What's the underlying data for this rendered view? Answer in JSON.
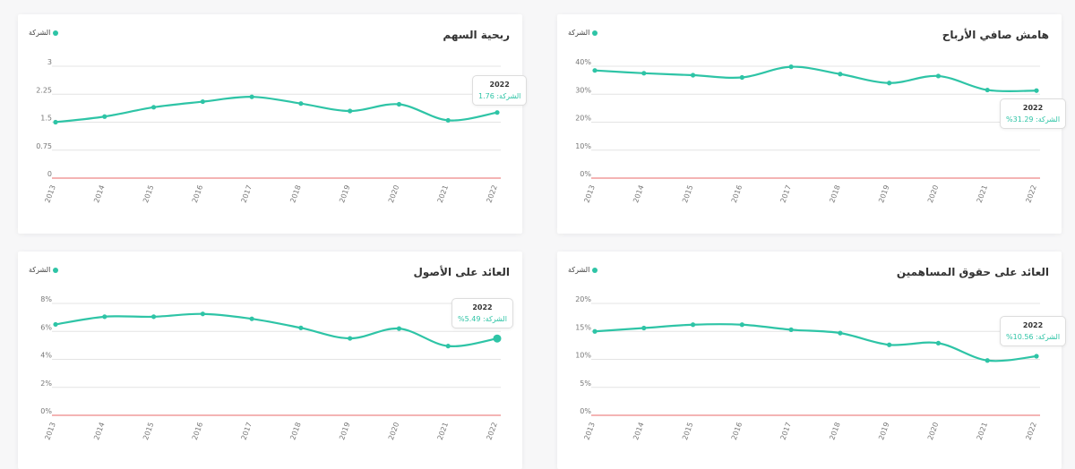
{
  "colors": {
    "accent": "#2ec4a6",
    "baseline": "#e88888",
    "grid": "#e4e4e4"
  },
  "chart_data": [
    {
      "id": "eps",
      "type": "line",
      "title": "ربحية السهم",
      "legend": "الشركة",
      "x": [
        "2013",
        "2014",
        "2015",
        "2016",
        "2017",
        "2018",
        "2019",
        "2020",
        "2021",
        "2022"
      ],
      "yticks": [
        "0",
        "0.75",
        "1.5",
        "2.25",
        "3"
      ],
      "ylim": [
        0,
        3
      ],
      "series": [
        {
          "name": "الشركة",
          "values": [
            1.5,
            1.65,
            1.9,
            2.05,
            2.18,
            2.0,
            1.8,
            1.98,
            1.55,
            1.76
          ]
        }
      ],
      "tooltip": {
        "year": "2022",
        "text": "الشركة: 1.76"
      }
    },
    {
      "id": "npm",
      "type": "line",
      "title": "هامش صافي الأرباح",
      "legend": "الشركة",
      "x": [
        "2013",
        "2014",
        "2015",
        "2016",
        "2017",
        "2018",
        "2019",
        "2020",
        "2021",
        "2022"
      ],
      "yticks": [
        "0%",
        "10%",
        "20%",
        "30%",
        "40%"
      ],
      "ylim": [
        0,
        40
      ],
      "series": [
        {
          "name": "الشركة",
          "values": [
            38.5,
            37.5,
            36.8,
            36.0,
            39.8,
            37.2,
            34.0,
            36.5,
            31.5,
            31.29
          ]
        }
      ],
      "tooltip": {
        "year": "2022",
        "text": "الشركة: 31.29%"
      }
    },
    {
      "id": "roa",
      "type": "line",
      "title": "العائد على الأصول",
      "legend": "الشركة",
      "x": [
        "2013",
        "2014",
        "2015",
        "2016",
        "2017",
        "2018",
        "2019",
        "2020",
        "2021",
        "2022"
      ],
      "yticks": [
        "0%",
        "2%",
        "4%",
        "6%",
        "8%"
      ],
      "ylim": [
        0,
        8
      ],
      "series": [
        {
          "name": "الشركة",
          "values": [
            6.5,
            7.05,
            7.05,
            7.25,
            6.9,
            6.25,
            5.5,
            6.2,
            4.95,
            5.49
          ]
        }
      ],
      "tooltip": {
        "year": "2022",
        "text": "الشركة: 5.49%"
      }
    },
    {
      "id": "roe",
      "type": "line",
      "title": "العائد على حقوق المساهمين",
      "legend": "الشركة",
      "x": [
        "2013",
        "2014",
        "2015",
        "2016",
        "2017",
        "2018",
        "2019",
        "2020",
        "2021",
        "2022"
      ],
      "yticks": [
        "0%",
        "5%",
        "10%",
        "15%",
        "20%"
      ],
      "ylim": [
        0,
        20
      ],
      "series": [
        {
          "name": "الشركة",
          "values": [
            15.0,
            15.6,
            16.2,
            16.2,
            15.3,
            14.7,
            12.6,
            12.9,
            9.8,
            10.56
          ]
        }
      ],
      "tooltip": {
        "year": "2022",
        "text": "الشركة: 10.56%"
      }
    }
  ]
}
